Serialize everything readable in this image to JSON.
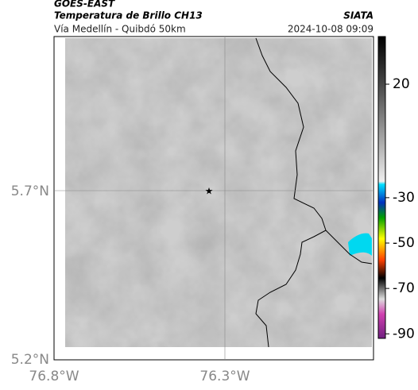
{
  "header": {
    "title": "GOES-EAST",
    "subtitle": "Temperatura de Brillo CH13",
    "route": "Vía Medellín - Quibdó 50km",
    "source": "SIATA",
    "datetime": "2024-10-08 09:09"
  },
  "map": {
    "lat_labels": [
      "5.7°N",
      "5.2°N"
    ],
    "lon_labels": [
      "76.8°W",
      "76.3°W"
    ]
  },
  "colorbar": {
    "clim": [
      -92,
      41
    ],
    "ticks": [
      20,
      -30,
      -50,
      -70,
      -90
    ]
  }
}
